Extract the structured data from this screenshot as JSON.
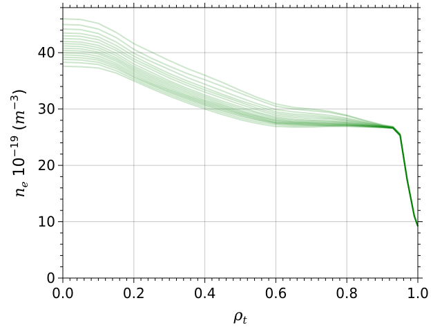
{
  "chart_data": {
    "type": "line",
    "title": "",
    "xlabel": "ρ",
    "xlabel_sub": "t",
    "ylabel_main": "n",
    "ylabel_sub": "e",
    "ylabel_mult": " 10",
    "ylabel_exp": "−19",
    "ylabel_unit_open": " (",
    "ylabel_unit": "m",
    "ylabel_unit_exp": "−3",
    "ylabel_unit_close": ")",
    "xlim": [
      0.0,
      1.0
    ],
    "ylim": [
      0,
      48
    ],
    "xticks": [
      0.0,
      0.2,
      0.4,
      0.6,
      0.8,
      1.0
    ],
    "xtick_labels": [
      "0.0",
      "0.2",
      "0.4",
      "0.6",
      "0.8",
      "1.0"
    ],
    "yticks": [
      0,
      10,
      20,
      30,
      40
    ],
    "ytick_labels": [
      "0",
      "10",
      "20",
      "30",
      "40"
    ],
    "grid": true,
    "line_color": "#008000",
    "line_opacity": 0.2,
    "x": [
      0.0,
      0.05,
      0.1,
      0.15,
      0.2,
      0.25,
      0.3,
      0.35,
      0.4,
      0.45,
      0.5,
      0.55,
      0.6,
      0.65,
      0.7,
      0.75,
      0.8,
      0.85,
      0.9,
      0.93,
      0.95,
      0.97,
      0.99,
      1.0
    ],
    "series": [
      {
        "values": [
          46.0,
          45.9,
          45.2,
          43.6,
          41.6,
          40.1,
          38.6,
          37.2,
          36.0,
          34.7,
          33.3,
          32.0,
          30.9,
          30.3,
          30.0,
          29.6,
          28.9,
          28.0,
          27.2,
          26.9,
          25.6,
          17.5,
          11.0,
          9.2
        ]
      },
      {
        "values": [
          45.0,
          44.9,
          44.2,
          42.7,
          40.6,
          39.0,
          37.6,
          36.3,
          35.2,
          34.0,
          32.8,
          31.6,
          30.5,
          30.0,
          29.7,
          29.4,
          28.8,
          27.9,
          27.1,
          26.8,
          25.5,
          17.5,
          11.0,
          9.2
        ]
      },
      {
        "values": [
          44.2,
          44.1,
          43.4,
          41.9,
          39.9,
          38.4,
          37.0,
          35.6,
          34.4,
          33.2,
          32.0,
          30.9,
          29.9,
          29.5,
          29.2,
          28.9,
          28.4,
          27.7,
          27.1,
          26.8,
          25.5,
          17.5,
          11.0,
          9.2
        ]
      },
      {
        "values": [
          43.5,
          43.4,
          42.8,
          41.3,
          39.4,
          37.8,
          36.3,
          35.0,
          33.8,
          32.6,
          31.5,
          30.5,
          29.5,
          29.1,
          28.9,
          28.6,
          28.2,
          27.6,
          27.0,
          26.8,
          25.5,
          17.4,
          11.0,
          9.2
        ]
      },
      {
        "values": [
          43.0,
          42.9,
          42.3,
          40.8,
          38.9,
          37.4,
          35.9,
          34.6,
          33.4,
          32.3,
          31.2,
          30.1,
          29.2,
          28.8,
          28.6,
          28.4,
          28.0,
          27.5,
          27.0,
          26.7,
          25.4,
          17.4,
          11.0,
          9.2
        ]
      },
      {
        "values": [
          42.5,
          42.4,
          41.8,
          40.4,
          38.5,
          37.0,
          35.5,
          34.2,
          33.0,
          31.9,
          30.8,
          29.8,
          28.9,
          28.5,
          28.3,
          28.2,
          27.9,
          27.4,
          27.0,
          26.7,
          25.4,
          17.4,
          11.0,
          9.2
        ]
      },
      {
        "values": [
          42.0,
          41.9,
          41.3,
          39.9,
          38.0,
          36.5,
          35.0,
          33.7,
          32.5,
          31.4,
          30.4,
          29.4,
          28.6,
          28.2,
          28.0,
          27.9,
          27.7,
          27.3,
          26.9,
          26.7,
          25.4,
          17.4,
          11.0,
          9.2
        ]
      },
      {
        "values": [
          41.6,
          41.5,
          40.9,
          39.5,
          37.6,
          36.1,
          34.7,
          33.4,
          32.2,
          31.1,
          30.1,
          29.2,
          28.4,
          28.0,
          27.9,
          27.8,
          27.6,
          27.2,
          26.9,
          26.7,
          25.4,
          17.4,
          11.0,
          9.2
        ]
      },
      {
        "values": [
          41.2,
          41.1,
          40.5,
          39.1,
          37.3,
          35.8,
          34.4,
          33.1,
          31.9,
          30.8,
          29.8,
          28.9,
          28.2,
          27.8,
          27.7,
          27.6,
          27.5,
          27.2,
          26.9,
          26.7,
          25.4,
          17.4,
          11.0,
          9.2
        ]
      },
      {
        "values": [
          40.8,
          40.7,
          40.1,
          38.8,
          37.0,
          35.5,
          34.1,
          32.8,
          31.6,
          30.6,
          29.6,
          28.7,
          28.0,
          27.7,
          27.6,
          27.5,
          27.4,
          27.1,
          26.9,
          26.7,
          25.4,
          17.4,
          11.0,
          9.2
        ]
      },
      {
        "values": [
          40.4,
          40.3,
          39.8,
          38.5,
          36.7,
          35.2,
          33.8,
          32.5,
          31.4,
          30.4,
          29.4,
          28.6,
          27.9,
          27.6,
          27.5,
          27.4,
          27.3,
          27.1,
          26.8,
          26.6,
          25.3,
          17.4,
          11.0,
          9.2
        ]
      },
      {
        "values": [
          40.0,
          39.9,
          39.4,
          38.1,
          36.4,
          34.9,
          33.5,
          32.3,
          31.2,
          30.2,
          29.2,
          28.4,
          27.7,
          27.5,
          27.4,
          27.3,
          27.2,
          27.0,
          26.8,
          26.6,
          25.3,
          17.4,
          11.0,
          9.2
        ]
      },
      {
        "values": [
          39.6,
          39.5,
          39.0,
          37.8,
          36.1,
          34.6,
          33.3,
          32.1,
          31.0,
          30.0,
          29.1,
          28.3,
          27.6,
          27.4,
          27.3,
          27.2,
          27.2,
          27.0,
          26.8,
          26.6,
          25.3,
          17.4,
          11.0,
          9.2
        ]
      },
      {
        "values": [
          39.2,
          39.1,
          38.7,
          37.5,
          35.8,
          34.4,
          33.1,
          31.9,
          30.8,
          29.8,
          28.9,
          28.1,
          27.5,
          27.3,
          27.2,
          27.1,
          27.1,
          27.0,
          26.8,
          26.6,
          25.3,
          17.4,
          11.0,
          9.2
        ]
      },
      {
        "values": [
          38.8,
          38.7,
          38.3,
          37.2,
          35.6,
          34.2,
          32.9,
          31.7,
          30.6,
          29.6,
          28.7,
          28.0,
          27.4,
          27.2,
          27.1,
          27.1,
          27.1,
          26.9,
          26.8,
          26.6,
          25.3,
          17.4,
          11.0,
          9.2
        ]
      },
      {
        "values": [
          38.3,
          38.2,
          37.9,
          36.8,
          35.3,
          33.9,
          32.6,
          31.4,
          30.3,
          29.3,
          28.4,
          27.7,
          27.2,
          27.0,
          27.0,
          27.0,
          27.0,
          26.9,
          26.7,
          26.6,
          25.3,
          17.4,
          11.0,
          9.2
        ]
      },
      {
        "values": [
          37.6,
          37.5,
          37.3,
          36.4,
          35.0,
          33.6,
          32.3,
          31.1,
          30.0,
          29.0,
          28.1,
          27.4,
          26.9,
          26.8,
          26.8,
          26.9,
          26.9,
          26.8,
          26.7,
          26.6,
          25.3,
          17.4,
          11.0,
          9.2
        ]
      }
    ]
  }
}
